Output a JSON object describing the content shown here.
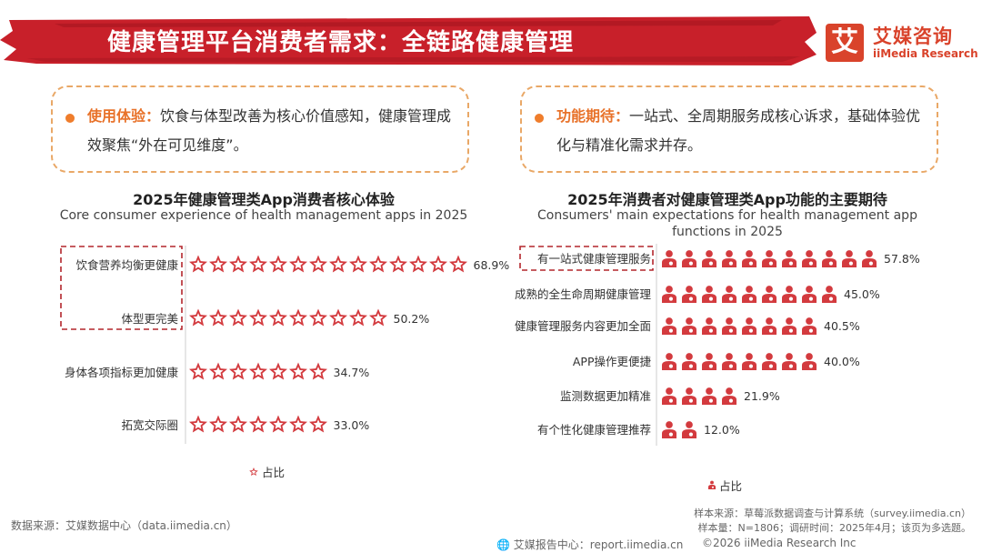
{
  "header": {
    "title": "健康管理平台消费者需求：全链路健康管理"
  },
  "logo": {
    "glyph": "艾",
    "name_cn": "艾媒咨询",
    "name_en": "iiMedia Research"
  },
  "callouts": [
    {
      "key": "使用体验：",
      "text": "饮食与体型改善为核心价值感知，健康管理成效聚焦“外在可见维度”。"
    },
    {
      "key": "功能期待：",
      "text": "一站式、全周期服务成核心诉求，基础体验优化与精准化需求并存。"
    }
  ],
  "colors": {
    "brand": "#d9432b",
    "mark": "#d33a3e",
    "accent": "#ef7d2c",
    "dashed": "#e9a867"
  },
  "chart_data": [
    {
      "type": "bar",
      "title": "2025年健康管理类App消费者核心体验",
      "subtitle": "Core consumer experience of health management apps in 2025",
      "categories": [
        "饮食营养均衡更健康",
        "体型更完美",
        "身体各项指标更加健康",
        "拓宽交际圈"
      ],
      "values": [
        68.9,
        50.2,
        34.7,
        33.0
      ],
      "value_labels": [
        "68.9%",
        "50.2%",
        "34.7%",
        "33.0%"
      ],
      "legend": "占比",
      "legend_position": "bottom-center",
      "marker_icon": "star-icon",
      "highlighted": [
        "饮食营养均衡更健康",
        "体型更完美"
      ]
    },
    {
      "type": "bar",
      "title": "2025年消费者对健康管理类App功能的主要期待",
      "subtitle": "Consumers' main expectations for health management app functions in 2025",
      "categories": [
        "有一站式健康管理服务",
        "成熟的全生命周期健康管理",
        "健康管理服务内容更加全面",
        "APP操作更便捷",
        "监测数据更加精准",
        "有个性化健康管理推荐"
      ],
      "values": [
        57.8,
        45.0,
        40.5,
        40.0,
        21.9,
        12.0
      ],
      "value_labels": [
        "57.8%",
        "45.0%",
        "40.5%",
        "40.0%",
        "21.9%",
        "12.0%"
      ],
      "legend": "占比",
      "legend_position": "bottom-center",
      "marker_icon": "person-icon",
      "highlighted": [
        "有一站式健康管理服务"
      ]
    }
  ],
  "footer": {
    "data_source": "数据来源：艾媒数据中心（data.iimedia.cn）",
    "sample_source": "样本来源：草莓派数据调查与计算系统（survey.iimedia.cn）",
    "sample_size": "样本量：N=1806；调研时间：2025年4月；该页为多选题。",
    "report_center": "艾媒报告中心：report.iimedia.cn",
    "copyright": "©2026  iiMedia Research  Inc"
  }
}
